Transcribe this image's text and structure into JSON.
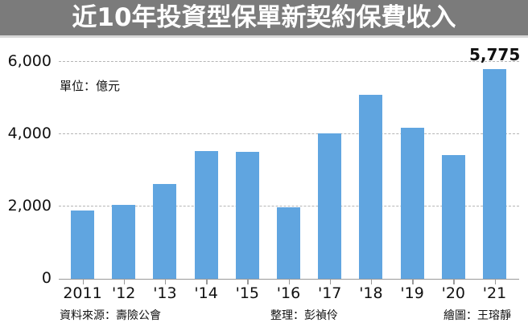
{
  "header": {
    "title": "近10年投資型保單新契約保費收入"
  },
  "chart_data": {
    "type": "bar",
    "title": "近10年投資型保單新契約保費收入",
    "unit_label": "單位：億元",
    "xlabel": "",
    "ylabel": "億元",
    "ylim": [
      0,
      6000
    ],
    "yticks": [
      "0",
      "2,000",
      "4,000",
      "6,000"
    ],
    "grid": true,
    "legend": null,
    "categories": [
      "2011",
      "'12",
      "'13",
      "'14",
      "'15",
      "'16",
      "'17",
      "'18",
      "'19",
      "'20",
      "'21"
    ],
    "values": [
      1890,
      2040,
      2620,
      3510,
      3490,
      1980,
      4010,
      5060,
      4170,
      3420,
      5775
    ],
    "annotations": [
      {
        "category": "'21",
        "text": "5,775"
      }
    ],
    "bar_color": "#60a5e0"
  },
  "footer": {
    "source": "資料來源：壽險公會",
    "editor": "整理：彭禎伶",
    "artist": "繪圖：王瑢靜"
  },
  "colors": {
    "title_bg": "#7b7b7b",
    "bar": "#60a5e0",
    "grid": "#b5b5b5"
  }
}
